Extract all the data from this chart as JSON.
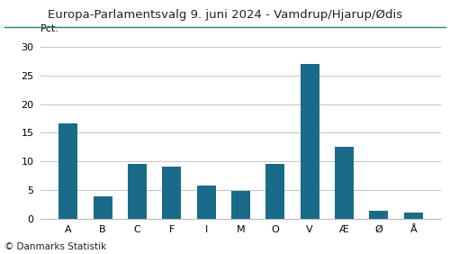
{
  "title": "Europa-Parlamentsvalg 9. juni 2024 - Vamdrup/Hjarup/Ødis",
  "categories": [
    "A",
    "B",
    "C",
    "F",
    "I",
    "M",
    "O",
    "V",
    "Æ",
    "Ø",
    "Å"
  ],
  "values": [
    16.7,
    3.9,
    9.6,
    9.1,
    5.8,
    4.8,
    9.5,
    27.0,
    12.5,
    1.3,
    1.0
  ],
  "bar_color": "#1a6b8a",
  "ylim": [
    0,
    32
  ],
  "yticks": [
    0,
    5,
    10,
    15,
    20,
    25,
    30
  ],
  "ylabel": "Pct.",
  "footer": "© Danmarks Statistik",
  "title_color": "#222222",
  "title_line_color": "#2a8a57",
  "grid_color": "#bbbbbb",
  "background_color": "#ffffff",
  "title_fontsize": 9.5,
  "axis_fontsize": 8,
  "footer_fontsize": 7.5,
  "bar_width": 0.55
}
